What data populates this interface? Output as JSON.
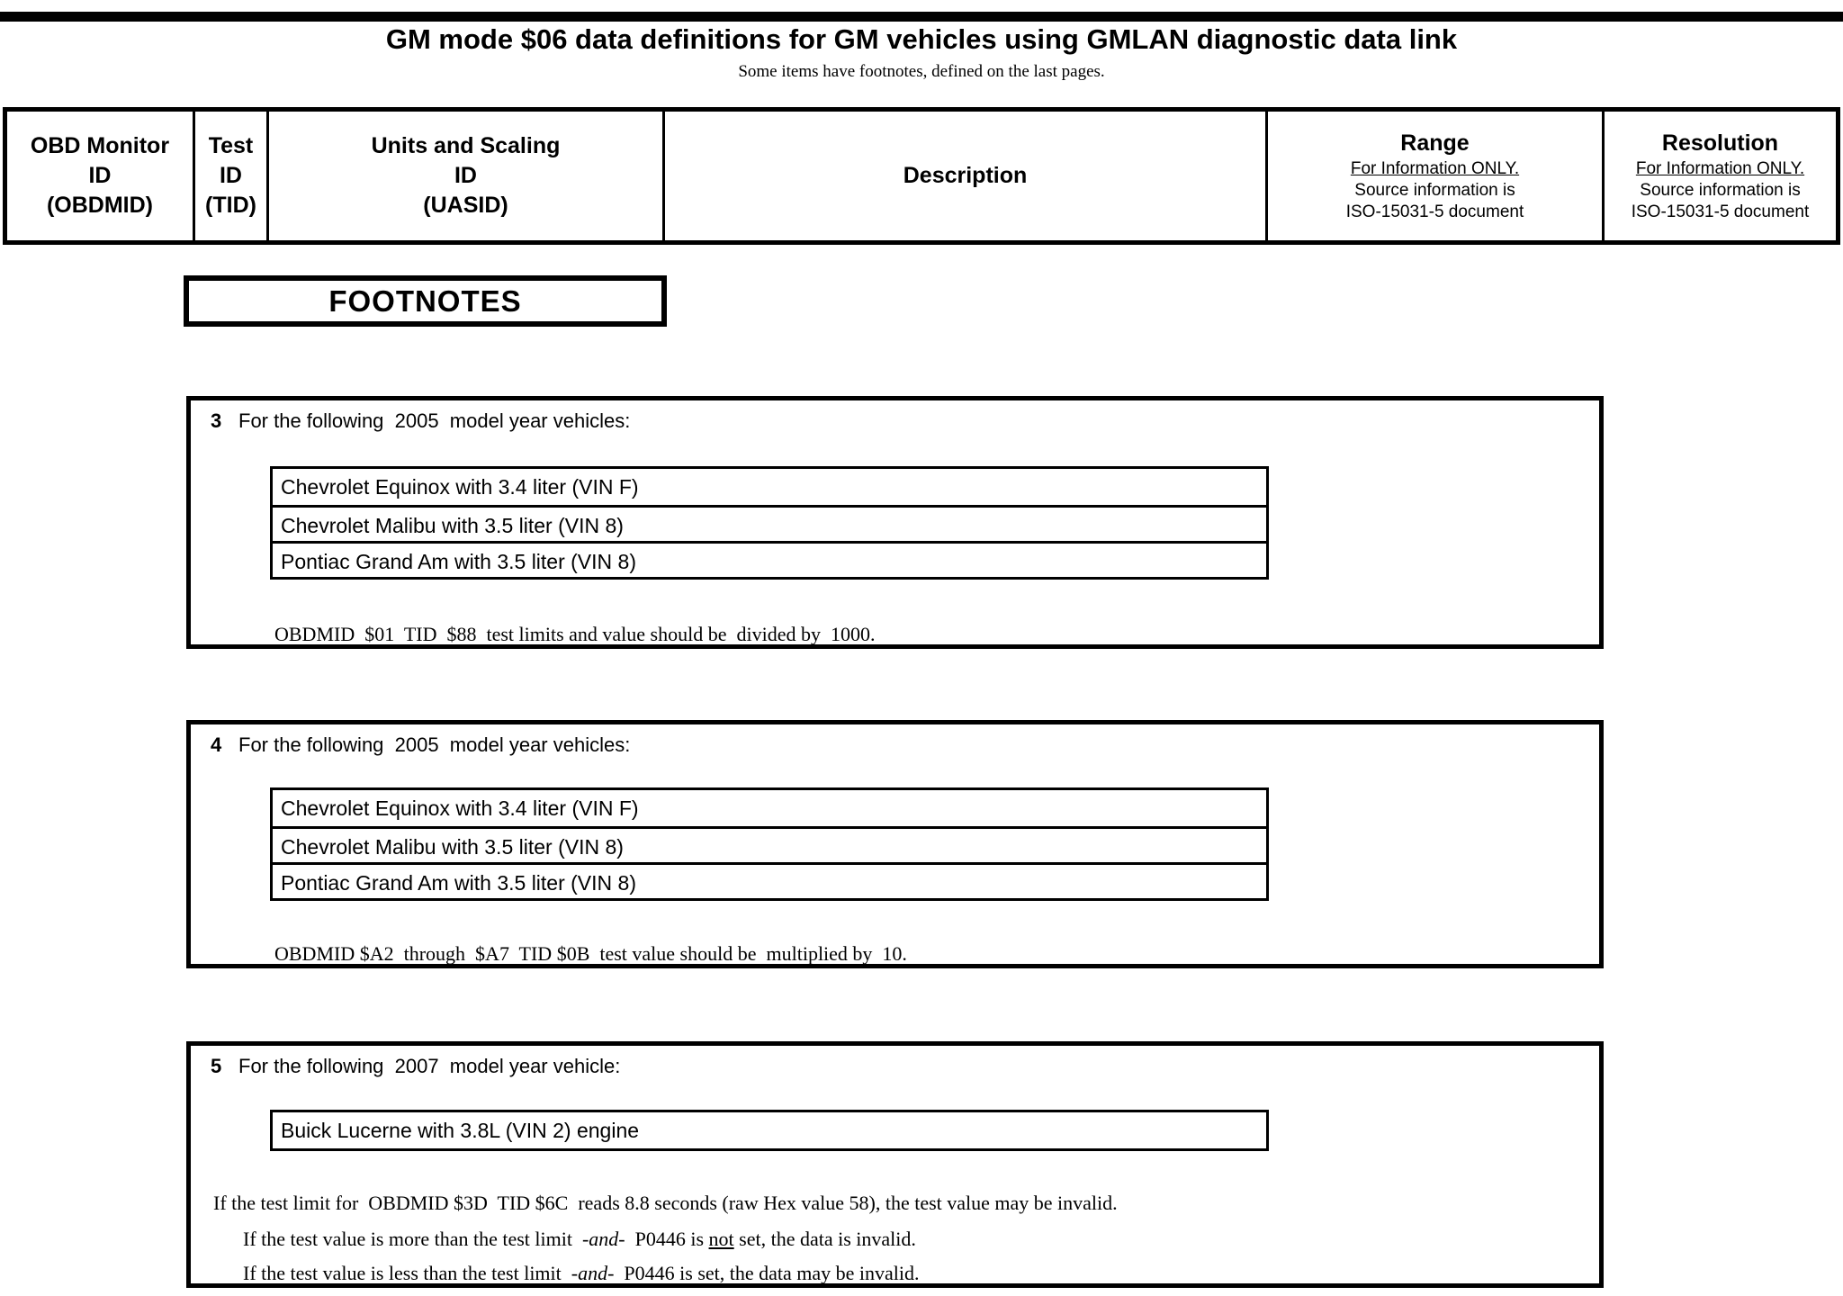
{
  "colors": {
    "ink": "#000000",
    "paper": "#ffffff"
  },
  "page": {
    "title": "GM mode $06 data definitions for GM vehicles using GMLAN diagnostic data link",
    "subtitle": "Some items have footnotes, defined on the last pages."
  },
  "header_table": {
    "col_obdmid": "OBD Monitor\nID\n(OBDMID)",
    "col_tid": "Test\nID\n(TID)",
    "col_uasid": "Units and Scaling\nID\n(UASID)",
    "col_description": "Description",
    "col_range": {
      "title": "Range",
      "info": "For Information ONLY.",
      "source": "Source information is",
      "doc": "ISO-15031-5 document"
    },
    "col_resolution": {
      "title": "Resolution",
      "info": "For Information ONLY.",
      "source": "Source information is",
      "doc": "ISO-15031-5 document"
    }
  },
  "footnotes_title": "FOOTNOTES",
  "footnotes": [
    {
      "number": "3",
      "heading": "For the following  2005  model year vehicles:",
      "vehicles": [
        "Chevrolet Equinox with 3.4 liter (VIN F)",
        "Chevrolet Malibu with 3.5 liter (VIN 8)",
        "Pontiac Grand Am with 3.5 liter (VIN 8)"
      ],
      "note": "OBDMID  $01  TID  $88  test limits and value should be  divided by  1000."
    },
    {
      "number": "4",
      "heading": "For the following  2005  model year vehicles:",
      "vehicles": [
        "Chevrolet Equinox with 3.4 liter (VIN F)",
        "Chevrolet Malibu with 3.5 liter (VIN 8)",
        "Pontiac Grand Am with 3.5 liter (VIN 8)"
      ],
      "note": "OBDMID $A2  through  $A7  TID $0B  test value should be  multiplied by  10."
    },
    {
      "number": "5",
      "heading": "For the following  2007  model year vehicle:",
      "vehicles": [
        "Buick Lucerne with 3.8L (VIN 2) engine"
      ],
      "note1": "If the test limit for  OBDMID $3D  TID $6C  reads 8.8 seconds (raw Hex value 58), the test value may be invalid.",
      "note2_pre": "If the test value is more than the test limit  ",
      "note2_and": "-and-",
      "note2_mid": "  P0446 is ",
      "note2_not": "not",
      "note2_post": " set, the data is invalid.",
      "note3_pre": "If the test value is less than the test limit  ",
      "note3_and": "-and-",
      "note3_post": "  P0446 is set, the data may be invalid."
    }
  ]
}
